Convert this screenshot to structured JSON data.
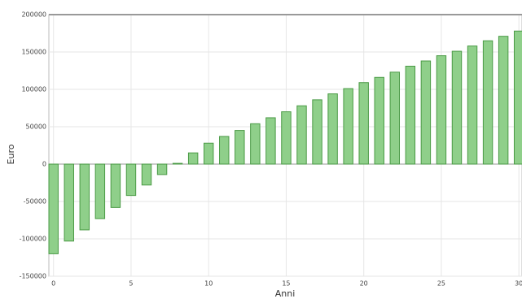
{
  "chart_data": {
    "type": "bar",
    "xlabel": "Anni",
    "ylabel": "Euro",
    "x": [
      0,
      1,
      2,
      3,
      4,
      5,
      6,
      7,
      8,
      9,
      10,
      11,
      12,
      13,
      14,
      15,
      16,
      17,
      18,
      19,
      20,
      21,
      22,
      23,
      24,
      25,
      26,
      27,
      28,
      29,
      30
    ],
    "values": [
      -120000,
      -103000,
      -88000,
      -73000,
      -58000,
      -42000,
      -28000,
      -14000,
      1000,
      15000,
      28000,
      37000,
      45000,
      54000,
      62000,
      70000,
      78000,
      86000,
      94000,
      101000,
      109000,
      116000,
      123000,
      131000,
      138000,
      145000,
      151000,
      158000,
      165000,
      171000,
      178000
    ],
    "color": "#8fcf8a",
    "xlim": [
      -0.3,
      30.2
    ],
    "xticks": [
      0,
      5,
      10,
      15,
      20,
      25,
      30
    ],
    "ylim": [
      -150000,
      200000
    ],
    "yticks": [
      -150000,
      -100000,
      -50000,
      0,
      50000,
      100000,
      150000,
      200000
    ],
    "grid": true
  }
}
